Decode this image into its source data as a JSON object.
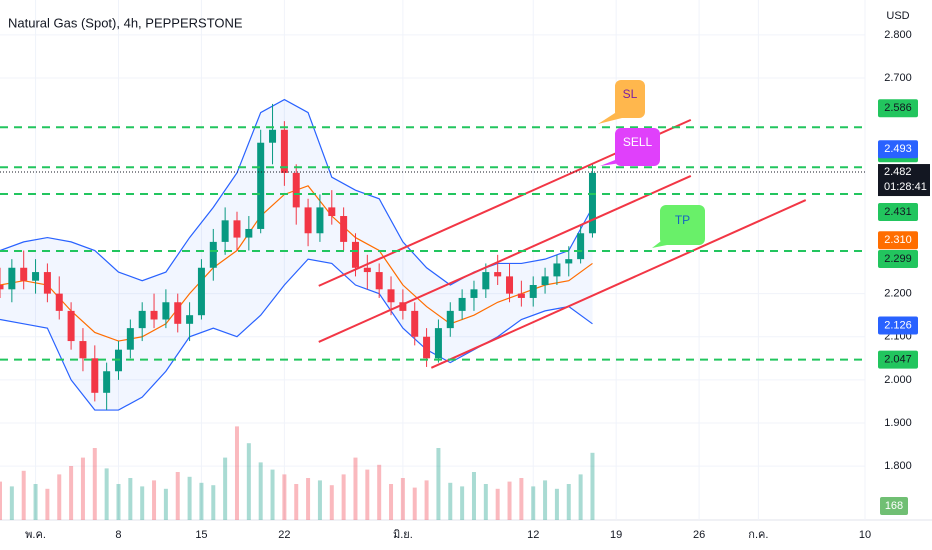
{
  "chart_data": {
    "type": "candlestick",
    "title": "Natural Gas (Spot), 4h, PEPPERSTONE",
    "currency": "USD",
    "up_color": "#089981",
    "down_color": "#f23645",
    "x": [
      -3,
      -2,
      -1,
      0,
      1,
      2,
      3,
      4,
      5,
      6,
      7,
      8,
      9,
      10,
      11,
      12,
      13,
      14,
      15,
      16,
      17,
      18,
      19,
      20,
      21,
      22,
      23,
      24,
      25,
      26,
      27,
      28,
      29,
      30,
      31,
      32,
      33,
      34,
      35,
      36,
      37,
      38,
      39,
      40,
      41,
      42,
      43,
      44,
      45,
      46,
      47
    ],
    "candles": [
      [
        2.22,
        2.26,
        2.19,
        2.21
      ],
      [
        2.21,
        2.28,
        2.18,
        2.26
      ],
      [
        2.26,
        2.3,
        2.21,
        2.23
      ],
      [
        2.23,
        2.28,
        2.2,
        2.25
      ],
      [
        2.25,
        2.27,
        2.18,
        2.2
      ],
      [
        2.2,
        2.24,
        2.14,
        2.16
      ],
      [
        2.16,
        2.18,
        2.07,
        2.09
      ],
      [
        2.09,
        2.12,
        2.02,
        2.05
      ],
      [
        2.05,
        2.08,
        1.95,
        1.97
      ],
      [
        1.97,
        2.04,
        1.93,
        2.02
      ],
      [
        2.02,
        2.09,
        2.0,
        2.07
      ],
      [
        2.07,
        2.14,
        2.05,
        2.12
      ],
      [
        2.12,
        2.18,
        2.09,
        2.16
      ],
      [
        2.16,
        2.2,
        2.12,
        2.14
      ],
      [
        2.14,
        2.21,
        2.12,
        2.18
      ],
      [
        2.18,
        2.2,
        2.11,
        2.13
      ],
      [
        2.13,
        2.18,
        2.09,
        2.15
      ],
      [
        2.15,
        2.28,
        2.14,
        2.26
      ],
      [
        2.26,
        2.35,
        2.23,
        2.32
      ],
      [
        2.32,
        2.4,
        2.29,
        2.37
      ],
      [
        2.37,
        2.39,
        2.3,
        2.33
      ],
      [
        2.33,
        2.38,
        2.3,
        2.35
      ],
      [
        2.35,
        2.58,
        2.34,
        2.55
      ],
      [
        2.55,
        2.64,
        2.5,
        2.58
      ],
      [
        2.58,
        2.6,
        2.45,
        2.48
      ],
      [
        2.48,
        2.5,
        2.36,
        2.4
      ],
      [
        2.4,
        2.42,
        2.31,
        2.34
      ],
      [
        2.34,
        2.43,
        2.32,
        2.4
      ],
      [
        2.4,
        2.44,
        2.36,
        2.38
      ],
      [
        2.38,
        2.4,
        2.3,
        2.32
      ],
      [
        2.32,
        2.34,
        2.24,
        2.26
      ],
      [
        2.26,
        2.29,
        2.21,
        2.25
      ],
      [
        2.25,
        2.27,
        2.19,
        2.21
      ],
      [
        2.21,
        2.24,
        2.15,
        2.18
      ],
      [
        2.18,
        2.21,
        2.14,
        2.16
      ],
      [
        2.16,
        2.18,
        2.08,
        2.1
      ],
      [
        2.1,
        2.12,
        2.03,
        2.05
      ],
      [
        2.05,
        2.14,
        2.04,
        2.12
      ],
      [
        2.12,
        2.18,
        2.1,
        2.16
      ],
      [
        2.16,
        2.21,
        2.14,
        2.19
      ],
      [
        2.19,
        2.23,
        2.16,
        2.21
      ],
      [
        2.21,
        2.27,
        2.19,
        2.25
      ],
      [
        2.25,
        2.29,
        2.22,
        2.24
      ],
      [
        2.24,
        2.27,
        2.18,
        2.2
      ],
      [
        2.2,
        2.23,
        2.17,
        2.19
      ],
      [
        2.19,
        2.24,
        2.17,
        2.22
      ],
      [
        2.22,
        2.26,
        2.2,
        2.24
      ],
      [
        2.24,
        2.29,
        2.22,
        2.27
      ],
      [
        2.27,
        2.31,
        2.24,
        2.28
      ],
      [
        2.28,
        2.36,
        2.27,
        2.34
      ],
      [
        2.34,
        2.5,
        2.33,
        2.48
      ]
    ],
    "volume": {
      "values": [
        320,
        280,
        410,
        300,
        260,
        380,
        450,
        520,
        600,
        430,
        300,
        350,
        280,
        330,
        260,
        400,
        360,
        310,
        290,
        520,
        780,
        640,
        480,
        420,
        380,
        300,
        350,
        330,
        290,
        380,
        520,
        420,
        460,
        300,
        350,
        270,
        330,
        600,
        310,
        280,
        400,
        300,
        260,
        320,
        350,
        280,
        330,
        260,
        300,
        380,
        560
      ],
      "ylim": [
        0,
        1000
      ],
      "label": "168"
    },
    "bands": {
      "x": [
        -3,
        -1,
        1,
        3,
        5,
        7,
        9,
        11,
        13,
        15,
        17,
        19,
        21,
        23,
        25,
        27,
        29,
        31,
        33,
        35,
        37,
        39,
        41,
        43,
        45,
        47
      ],
      "upper": [
        2.3,
        2.32,
        2.33,
        2.32,
        2.3,
        2.25,
        2.23,
        2.25,
        2.33,
        2.4,
        2.48,
        2.62,
        2.65,
        2.62,
        2.47,
        2.44,
        2.42,
        2.32,
        2.26,
        2.22,
        2.25,
        2.27,
        2.27,
        2.28,
        2.3,
        2.4
      ],
      "lower": [
        2.14,
        2.13,
        2.12,
        2.0,
        1.93,
        1.93,
        1.96,
        2.02,
        2.1,
        2.12,
        2.1,
        2.15,
        2.22,
        2.28,
        2.27,
        2.22,
        2.2,
        2.12,
        2.07,
        2.04,
        2.07,
        2.1,
        2.14,
        2.16,
        2.17,
        2.13
      ],
      "basis": [
        2.22,
        2.23,
        2.22,
        2.16,
        2.11,
        2.09,
        2.1,
        2.13,
        2.2,
        2.26,
        2.3,
        2.38,
        2.43,
        2.45,
        2.38,
        2.33,
        2.3,
        2.22,
        2.17,
        2.13,
        2.15,
        2.18,
        2.2,
        2.22,
        2.23,
        2.27
      ],
      "band_color": "#2962ff",
      "basis_color": "#ff6d00"
    },
    "channels": {
      "color": "#f23645",
      "lines": [
        {
          "x": [
            23.9,
            55.3
          ],
          "y": [
            2.218,
            2.603
          ]
        },
        {
          "x": [
            23.9,
            55.3
          ],
          "y": [
            2.088,
            2.473
          ]
        },
        {
          "x": [
            33.4,
            65
          ],
          "y": [
            2.028,
            2.417
          ]
        }
      ]
    },
    "levels": [
      {
        "value": 2.586,
        "label": "2.586"
      },
      {
        "value": 2.493,
        "label": "2.493"
      },
      {
        "value": 2.431,
        "label": "2.431"
      },
      {
        "value": 2.299,
        "label": "2.299"
      },
      {
        "value": 2.047,
        "label": "2.047"
      }
    ],
    "level_color": "#22c55e",
    "markers": [
      {
        "value": 2.493,
        "label": "2.493",
        "color": "#2962ff"
      },
      {
        "value": 2.31,
        "label": "2.310",
        "color": "#ff6d00"
      },
      {
        "value": 2.126,
        "label": "2.126",
        "color": "#2962ff"
      }
    ],
    "last_price": {
      "value": 2.482,
      "label": "2.482",
      "countdown": "01:28:41"
    },
    "annotations": [
      {
        "text": "SL",
        "color": "#ffb74d",
        "text_color": "#7b1fa2"
      },
      {
        "text": "SELL",
        "color": "#e040fb",
        "text_color": "#ffffff"
      },
      {
        "text": "TP",
        "color": "#69f069",
        "text_color": "#1565c0"
      }
    ],
    "xlim": [
      -3,
      70
    ],
    "xticks": [
      {
        "value": 0,
        "label": "พ.ค."
      },
      {
        "value": 7,
        "label": "8"
      },
      {
        "value": 14,
        "label": "15"
      },
      {
        "value": 21,
        "label": "22"
      },
      {
        "value": 31,
        "label": "มิ.ย."
      },
      {
        "value": 42,
        "label": "12"
      },
      {
        "value": 49,
        "label": "19"
      },
      {
        "value": 56,
        "label": "26"
      },
      {
        "value": 61,
        "label": "ก.ค."
      },
      {
        "value": 70,
        "label": "10"
      }
    ],
    "ylim": [
      1.675,
      2.881
    ],
    "yticks": [
      {
        "value": 2.8,
        "label": "2.800"
      },
      {
        "value": 2.7,
        "label": "2.700"
      },
      {
        "value": 2.2,
        "label": "2.200"
      },
      {
        "value": 2.1,
        "label": "2.100"
      },
      {
        "value": 2.0,
        "label": "2.000"
      },
      {
        "value": 1.9,
        "label": "1.900"
      },
      {
        "value": 1.8,
        "label": "1.800"
      }
    ]
  }
}
